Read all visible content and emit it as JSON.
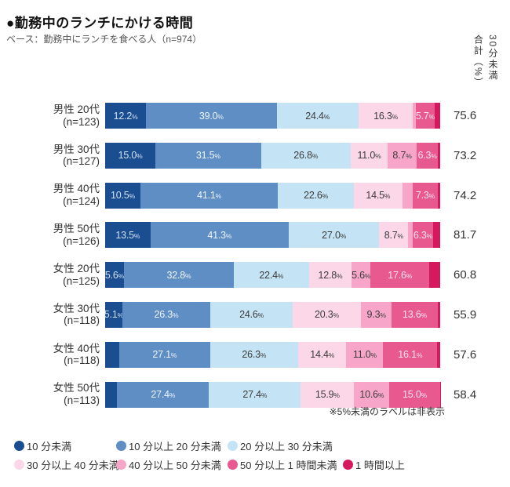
{
  "title": "●勤務中のランチにかける時間",
  "subtitle": "ベース：勤務中にランチを食べる人（n=974）",
  "total_column_header": "30分未満\n合計（%）",
  "footnote": "※5%未満のラベルは非表示",
  "chart_data": {
    "type": "bar",
    "subtype": "horizontal-stacked-100pct",
    "unit": "%",
    "value_label_min_display": 5.0,
    "categories": [
      "10 分未満",
      "10 分以上 20 分未満",
      "20 分以上 30 分未満",
      "30 分以上 40 分未満",
      "40 分以上 50 分未満",
      "50 分以上 1 時間未満",
      "1 時間以上"
    ],
    "colors": [
      "#1b4e91",
      "#5e8ec4",
      "#c4e4f6",
      "#fbd7e7",
      "#f7a6c9",
      "#e8598f",
      "#d6185f"
    ],
    "label_text_colors": [
      "#cfe0f3",
      "#eef4fb",
      "#3c3c3c",
      "#3c3c3c",
      "#3c3c3c",
      "#fce4ef",
      "#ffffff"
    ],
    "legend_rows": [
      [
        0,
        1,
        2
      ],
      [
        3,
        4,
        5,
        6
      ]
    ],
    "total_column_label": "30分未満 合計（%）",
    "rows": [
      {
        "group": "男性 20代",
        "n": "(n=123)",
        "values": [
          12.2,
          39.0,
          24.4,
          16.3,
          0.8,
          5.7,
          1.6
        ],
        "total_under_30min": "75.6"
      },
      {
        "group": "男性 30代",
        "n": "(n=127)",
        "values": [
          15.0,
          31.5,
          26.8,
          11.0,
          8.7,
          6.3,
          0.7
        ],
        "total_under_30min": "73.2"
      },
      {
        "group": "男性 40代",
        "n": "(n=124)",
        "values": [
          10.5,
          41.1,
          22.6,
          14.5,
          3.2,
          7.3,
          0.8
        ],
        "total_under_30min": "74.2"
      },
      {
        "group": "男性 50代",
        "n": "(n=126)",
        "values": [
          13.5,
          41.3,
          27.0,
          8.7,
          1.2,
          6.3,
          2.0
        ],
        "total_under_30min": "81.7"
      },
      {
        "group": "女性 20代",
        "n": "(n=125)",
        "values": [
          5.6,
          32.8,
          22.4,
          12.8,
          5.6,
          17.6,
          3.2
        ],
        "total_under_30min": "60.8"
      },
      {
        "group": "女性 30代",
        "n": "(n=118)",
        "values": [
          5.1,
          26.3,
          24.6,
          20.3,
          9.3,
          13.6,
          0.8
        ],
        "total_under_30min": "55.9"
      },
      {
        "group": "女性 40代",
        "n": "(n=118)",
        "values": [
          4.2,
          27.1,
          26.3,
          14.4,
          11.0,
          16.1,
          0.9
        ],
        "total_under_30min": "57.6"
      },
      {
        "group": "女性 50代",
        "n": "(n=113)",
        "values": [
          3.6,
          27.4,
          27.4,
          15.9,
          10.6,
          15.0,
          0.1
        ],
        "total_under_30min": "58.4"
      }
    ]
  }
}
